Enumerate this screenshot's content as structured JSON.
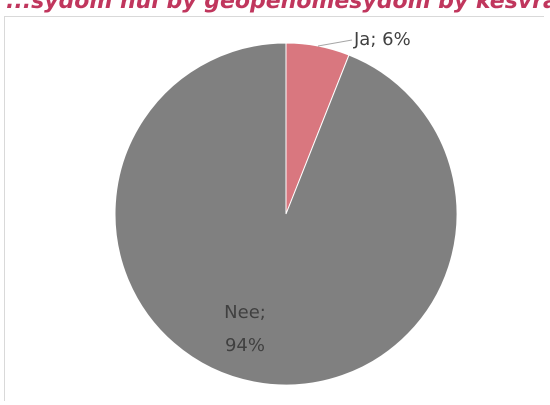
{
  "header": {
    "text": "...sydom hul by geopenomesydom by kesvrage"
  },
  "chart_data": {
    "type": "pie",
    "categories": [
      "Ja",
      "Nee"
    ],
    "values": [
      6,
      94
    ],
    "unit": "%",
    "colors": [
      "#d9777f",
      "#808080"
    ],
    "labels": {
      "ja": "Ja; 6%",
      "nee_line1": "Nee;",
      "nee_line2": "94%"
    },
    "start_angle_deg": 0,
    "direction": "clockwise"
  }
}
